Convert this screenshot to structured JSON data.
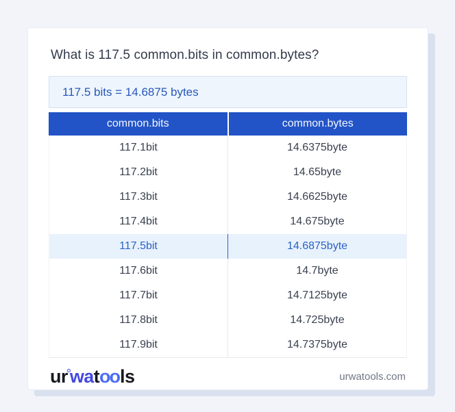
{
  "page": {
    "title": "What is 117.5 common.bits in common.bytes?",
    "result_text": "117.5 bits = 14.6875 bytes"
  },
  "table": {
    "headers": [
      "common.bits",
      "common.bytes"
    ],
    "highlight_row_index": 4,
    "rows": [
      {
        "bits": "117.1bit",
        "bytes": "14.6375byte"
      },
      {
        "bits": "117.2bit",
        "bytes": "14.65byte"
      },
      {
        "bits": "117.3bit",
        "bytes": "14.6625byte"
      },
      {
        "bits": "117.4bit",
        "bytes": "14.675byte"
      },
      {
        "bits": "117.5bit",
        "bytes": "14.6875byte"
      },
      {
        "bits": "117.6bit",
        "bytes": "14.7byte"
      },
      {
        "bits": "117.7bit",
        "bytes": "14.7125byte"
      },
      {
        "bits": "117.8bit",
        "bytes": "14.725byte"
      },
      {
        "bits": "117.9bit",
        "bytes": "14.7375byte"
      }
    ]
  },
  "footer": {
    "logo": {
      "part1": "ur",
      "part2": "wa",
      "part3": "t",
      "part4": "oo",
      "part5": "ls"
    },
    "domain": "urwatools.com"
  },
  "colors": {
    "page_background": "#f2f4f9",
    "card_background": "#ffffff",
    "card_shadow": "#d9e0ee",
    "header_blue": "#2254c7",
    "result_box_background": "#eef5fd",
    "result_text_blue": "#2857b8",
    "highlight_row_background": "#e8f2fd",
    "highlight_text_blue": "#2b61c4",
    "body_text": "#39404f",
    "logo_indigo": "#4348e0",
    "logo_blue": "#4d6ef5"
  }
}
